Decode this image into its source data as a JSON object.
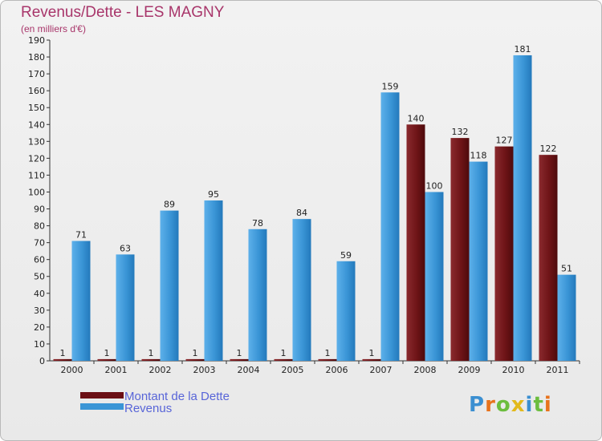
{
  "chart_data": {
    "type": "bar",
    "title": "Revenus/Dette - LES MAGNY",
    "subtitle": "(en milliers d'€)",
    "categories": [
      "2000",
      "2001",
      "2002",
      "2003",
      "2004",
      "2005",
      "2006",
      "2007",
      "2008",
      "2009",
      "2010",
      "2011"
    ],
    "series": [
      {
        "name": "Montant de la Dette",
        "color": "#6b0f14",
        "values": [
          1,
          1,
          1,
          1,
          1,
          1,
          1,
          1,
          140,
          132,
          127,
          122
        ]
      },
      {
        "name": "Revenus",
        "color": "#3a95d6",
        "values": [
          71,
          63,
          89,
          95,
          78,
          84,
          59,
          159,
          100,
          118,
          181,
          51
        ]
      }
    ],
    "yticks": [
      0,
      10,
      20,
      30,
      40,
      50,
      60,
      70,
      80,
      90,
      100,
      110,
      120,
      130,
      140,
      150,
      160,
      170,
      180,
      190
    ],
    "ylim": [
      0,
      190
    ],
    "grid": false,
    "legend_placement": "bottom-left"
  },
  "logo": {
    "letters": [
      "P",
      "r",
      "o",
      "x",
      "i",
      "t",
      "i"
    ],
    "colors": [
      "#3b8fd1",
      "#e8731c",
      "#6cbd3e",
      "#e2b91c",
      "#3b8fd1",
      "#6cbd3e",
      "#e8731c"
    ]
  }
}
